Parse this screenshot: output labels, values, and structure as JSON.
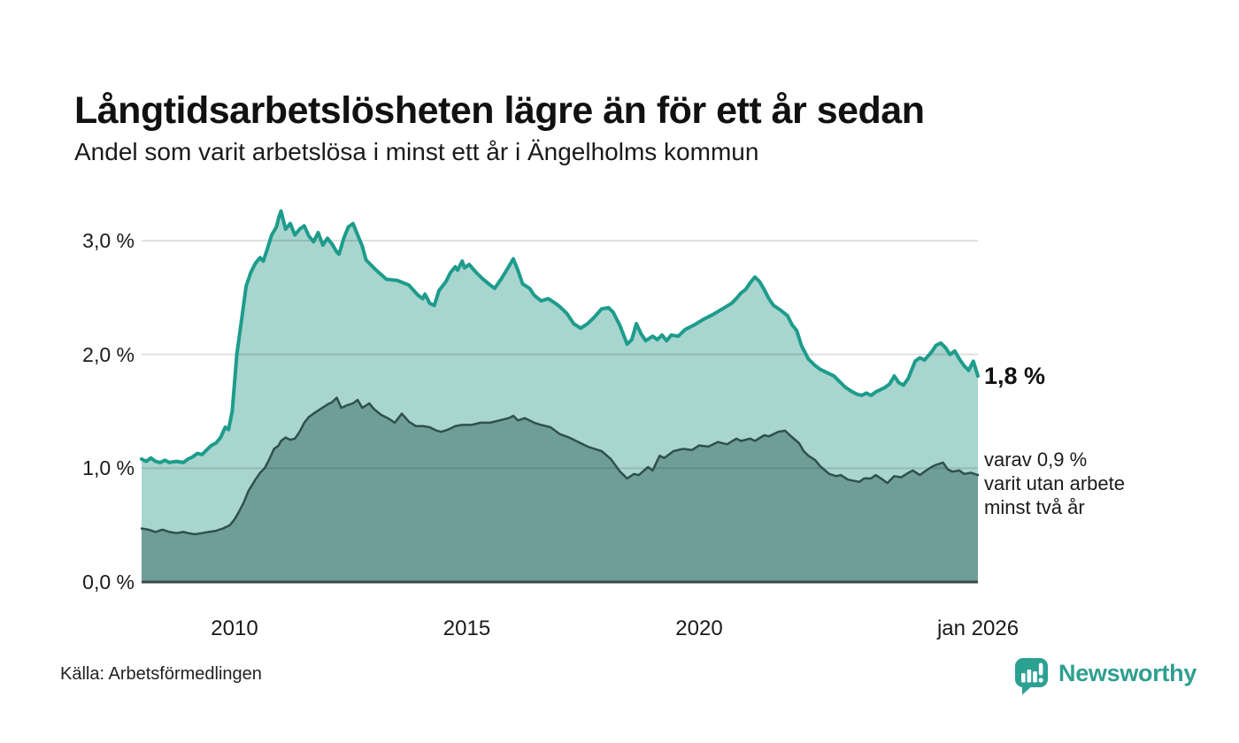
{
  "title": "Långtidsarbetslösheten lägre än för ett år sedan",
  "subtitle": "Andel som varit arbetslösa i minst ett år i Ängelholms kommun",
  "annotations": {
    "latest_total": "1,8 %",
    "sub_lines": [
      "varav 0,9 %",
      "varit utan arbete",
      "minst två år"
    ]
  },
  "source": "Källa: Arbetsförmedlingen",
  "brand": {
    "name": "Newsworthy"
  },
  "colors": {
    "accent_line": "#1d9c8c",
    "accent_fill": "#a8d5ce",
    "dark_line": "#30504b",
    "dark_fill": "#6f9e99",
    "gridline": "rgba(0,0,0,0.12)",
    "baseline": "#3e4a48",
    "brand_teal": "#2ba192",
    "text": "#1a1a1a"
  },
  "chart_data": {
    "type": "area",
    "title": "Långtidsarbetslösheten lägre än för ett år sedan",
    "subtitle": "Andel som varit arbetslösa i minst ett år i Ängelholms kommun",
    "x_range": [
      2008.0,
      2026.0
    ],
    "y_range": [
      0,
      3.0
    ],
    "grid": true,
    "legend": "none",
    "x_ticks": [
      {
        "label": "2010",
        "x": 2010
      },
      {
        "label": "2015",
        "x": 2015
      },
      {
        "label": "2020",
        "x": 2020
      },
      {
        "label": "jan 2026",
        "x": 2026
      }
    ],
    "y_ticks": [
      {
        "label": "0,0 %",
        "value": 0
      },
      {
        "label": "1,0 %",
        "value": 1
      },
      {
        "label": "2,0 %",
        "value": 2
      },
      {
        "label": "3,0 %",
        "value": 3
      }
    ],
    "series": [
      {
        "name": "Andel som varit arbetslösa minst ett år",
        "end_label": "1,8 %",
        "line_color": "#1d9c8c",
        "fill_color": "#a8d5ce",
        "line_width": 4,
        "points": [
          [
            2008.0,
            1.08
          ],
          [
            2008.1,
            1.06
          ],
          [
            2008.2,
            1.09
          ],
          [
            2008.3,
            1.06
          ],
          [
            2008.4,
            1.05
          ],
          [
            2008.5,
            1.07
          ],
          [
            2008.6,
            1.05
          ],
          [
            2008.75,
            1.06
          ],
          [
            2008.9,
            1.05
          ],
          [
            2009.0,
            1.08
          ],
          [
            2009.1,
            1.1
          ],
          [
            2009.2,
            1.13
          ],
          [
            2009.3,
            1.12
          ],
          [
            2009.4,
            1.16
          ],
          [
            2009.5,
            1.2
          ],
          [
            2009.6,
            1.22
          ],
          [
            2009.7,
            1.27
          ],
          [
            2009.8,
            1.36
          ],
          [
            2009.87,
            1.34
          ],
          [
            2009.95,
            1.5
          ],
          [
            2010.05,
            2.0
          ],
          [
            2010.15,
            2.3
          ],
          [
            2010.25,
            2.6
          ],
          [
            2010.35,
            2.72
          ],
          [
            2010.45,
            2.8
          ],
          [
            2010.55,
            2.85
          ],
          [
            2010.62,
            2.82
          ],
          [
            2010.7,
            2.92
          ],
          [
            2010.8,
            3.05
          ],
          [
            2010.9,
            3.12
          ],
          [
            2010.95,
            3.2
          ],
          [
            2011.0,
            3.26
          ],
          [
            2011.05,
            3.18
          ],
          [
            2011.1,
            3.1
          ],
          [
            2011.2,
            3.15
          ],
          [
            2011.3,
            3.05
          ],
          [
            2011.4,
            3.1
          ],
          [
            2011.5,
            3.13
          ],
          [
            2011.6,
            3.04
          ],
          [
            2011.7,
            2.99
          ],
          [
            2011.8,
            3.07
          ],
          [
            2011.9,
            2.96
          ],
          [
            2012.0,
            3.02
          ],
          [
            2012.1,
            2.97
          ],
          [
            2012.2,
            2.9
          ],
          [
            2012.25,
            2.88
          ],
          [
            2012.35,
            3.02
          ],
          [
            2012.45,
            3.12
          ],
          [
            2012.55,
            3.15
          ],
          [
            2012.65,
            3.05
          ],
          [
            2012.75,
            2.95
          ],
          [
            2012.83,
            2.83
          ],
          [
            2013.05,
            2.74
          ],
          [
            2013.27,
            2.66
          ],
          [
            2013.5,
            2.65
          ],
          [
            2013.75,
            2.61
          ],
          [
            2013.95,
            2.52
          ],
          [
            2014.05,
            2.49
          ],
          [
            2014.1,
            2.53
          ],
          [
            2014.2,
            2.45
          ],
          [
            2014.3,
            2.43
          ],
          [
            2014.4,
            2.56
          ],
          [
            2014.55,
            2.64
          ],
          [
            2014.65,
            2.72
          ],
          [
            2014.75,
            2.77
          ],
          [
            2014.8,
            2.74
          ],
          [
            2014.9,
            2.82
          ],
          [
            2014.95,
            2.76
          ],
          [
            2015.05,
            2.79
          ],
          [
            2015.2,
            2.72
          ],
          [
            2015.35,
            2.66
          ],
          [
            2015.5,
            2.61
          ],
          [
            2015.6,
            2.58
          ],
          [
            2015.75,
            2.67
          ],
          [
            2015.9,
            2.77
          ],
          [
            2016.0,
            2.84
          ],
          [
            2016.1,
            2.74
          ],
          [
            2016.2,
            2.62
          ],
          [
            2016.35,
            2.58
          ],
          [
            2016.45,
            2.52
          ],
          [
            2016.6,
            2.47
          ],
          [
            2016.75,
            2.49
          ],
          [
            2016.9,
            2.45
          ],
          [
            2017.0,
            2.42
          ],
          [
            2017.15,
            2.36
          ],
          [
            2017.3,
            2.27
          ],
          [
            2017.45,
            2.23
          ],
          [
            2017.6,
            2.27
          ],
          [
            2017.75,
            2.33
          ],
          [
            2017.9,
            2.4
          ],
          [
            2018.05,
            2.41
          ],
          [
            2018.15,
            2.37
          ],
          [
            2018.3,
            2.25
          ],
          [
            2018.45,
            2.09
          ],
          [
            2018.55,
            2.13
          ],
          [
            2018.65,
            2.27
          ],
          [
            2018.75,
            2.18
          ],
          [
            2018.85,
            2.12
          ],
          [
            2019.0,
            2.16
          ],
          [
            2019.1,
            2.13
          ],
          [
            2019.2,
            2.17
          ],
          [
            2019.3,
            2.12
          ],
          [
            2019.4,
            2.17
          ],
          [
            2019.55,
            2.16
          ],
          [
            2019.7,
            2.22
          ],
          [
            2019.9,
            2.26
          ],
          [
            2020.1,
            2.31
          ],
          [
            2020.3,
            2.35
          ],
          [
            2020.5,
            2.4
          ],
          [
            2020.7,
            2.45
          ],
          [
            2020.8,
            2.49
          ],
          [
            2020.9,
            2.54
          ],
          [
            2021.0,
            2.57
          ],
          [
            2021.1,
            2.63
          ],
          [
            2021.2,
            2.68
          ],
          [
            2021.3,
            2.64
          ],
          [
            2021.4,
            2.57
          ],
          [
            2021.5,
            2.49
          ],
          [
            2021.6,
            2.43
          ],
          [
            2021.75,
            2.39
          ],
          [
            2021.9,
            2.34
          ],
          [
            2022.0,
            2.26
          ],
          [
            2022.1,
            2.21
          ],
          [
            2022.2,
            2.08
          ],
          [
            2022.35,
            1.96
          ],
          [
            2022.5,
            1.9
          ],
          [
            2022.6,
            1.87
          ],
          [
            2022.75,
            1.84
          ],
          [
            2022.9,
            1.81
          ],
          [
            2023.0,
            1.77
          ],
          [
            2023.15,
            1.71
          ],
          [
            2023.3,
            1.67
          ],
          [
            2023.4,
            1.65
          ],
          [
            2023.5,
            1.64
          ],
          [
            2023.6,
            1.66
          ],
          [
            2023.7,
            1.64
          ],
          [
            2023.8,
            1.67
          ],
          [
            2023.9,
            1.69
          ],
          [
            2024.0,
            1.71
          ],
          [
            2024.1,
            1.74
          ],
          [
            2024.2,
            1.81
          ],
          [
            2024.3,
            1.75
          ],
          [
            2024.4,
            1.73
          ],
          [
            2024.5,
            1.79
          ],
          [
            2024.65,
            1.94
          ],
          [
            2024.75,
            1.97
          ],
          [
            2024.85,
            1.95
          ],
          [
            2025.0,
            2.02
          ],
          [
            2025.1,
            2.08
          ],
          [
            2025.2,
            2.1
          ],
          [
            2025.3,
            2.06
          ],
          [
            2025.4,
            2.0
          ],
          [
            2025.5,
            2.03
          ],
          [
            2025.6,
            1.96
          ],
          [
            2025.7,
            1.9
          ],
          [
            2025.8,
            1.86
          ],
          [
            2025.9,
            1.94
          ],
          [
            2026.0,
            1.81
          ]
        ]
      },
      {
        "name": "varav arbetslösa minst två år",
        "end_label": "0,9 %",
        "line_color": "#30504b",
        "fill_color": "#6f9e99",
        "line_width": 2.5,
        "points": [
          [
            2008.0,
            0.47
          ],
          [
            2008.15,
            0.46
          ],
          [
            2008.3,
            0.44
          ],
          [
            2008.45,
            0.46
          ],
          [
            2008.6,
            0.44
          ],
          [
            2008.75,
            0.43
          ],
          [
            2008.9,
            0.44
          ],
          [
            2009.0,
            0.43
          ],
          [
            2009.15,
            0.42
          ],
          [
            2009.3,
            0.43
          ],
          [
            2009.45,
            0.44
          ],
          [
            2009.6,
            0.45
          ],
          [
            2009.75,
            0.47
          ],
          [
            2009.9,
            0.5
          ],
          [
            2010.0,
            0.55
          ],
          [
            2010.1,
            0.62
          ],
          [
            2010.2,
            0.7
          ],
          [
            2010.3,
            0.8
          ],
          [
            2010.45,
            0.9
          ],
          [
            2010.55,
            0.96
          ],
          [
            2010.65,
            1.0
          ],
          [
            2010.75,
            1.08
          ],
          [
            2010.85,
            1.17
          ],
          [
            2010.95,
            1.2
          ],
          [
            2011.0,
            1.24
          ],
          [
            2011.1,
            1.27
          ],
          [
            2011.2,
            1.25
          ],
          [
            2011.3,
            1.26
          ],
          [
            2011.4,
            1.32
          ],
          [
            2011.5,
            1.4
          ],
          [
            2011.6,
            1.45
          ],
          [
            2011.7,
            1.48
          ],
          [
            2011.85,
            1.52
          ],
          [
            2012.0,
            1.56
          ],
          [
            2012.1,
            1.58
          ],
          [
            2012.2,
            1.62
          ],
          [
            2012.3,
            1.53
          ],
          [
            2012.4,
            1.55
          ],
          [
            2012.55,
            1.57
          ],
          [
            2012.65,
            1.6
          ],
          [
            2012.75,
            1.53
          ],
          [
            2012.9,
            1.57
          ],
          [
            2013.0,
            1.52
          ],
          [
            2013.15,
            1.47
          ],
          [
            2013.3,
            1.44
          ],
          [
            2013.45,
            1.4
          ],
          [
            2013.6,
            1.48
          ],
          [
            2013.75,
            1.41
          ],
          [
            2013.9,
            1.37
          ],
          [
            2014.05,
            1.37
          ],
          [
            2014.2,
            1.36
          ],
          [
            2014.35,
            1.33
          ],
          [
            2014.45,
            1.32
          ],
          [
            2014.6,
            1.34
          ],
          [
            2014.75,
            1.37
          ],
          [
            2014.9,
            1.38
          ],
          [
            2015.1,
            1.38
          ],
          [
            2015.3,
            1.4
          ],
          [
            2015.5,
            1.4
          ],
          [
            2015.7,
            1.42
          ],
          [
            2015.9,
            1.44
          ],
          [
            2016.0,
            1.46
          ],
          [
            2016.1,
            1.42
          ],
          [
            2016.25,
            1.44
          ],
          [
            2016.45,
            1.4
          ],
          [
            2016.6,
            1.38
          ],
          [
            2016.8,
            1.36
          ],
          [
            2017.0,
            1.3
          ],
          [
            2017.2,
            1.27
          ],
          [
            2017.4,
            1.23
          ],
          [
            2017.6,
            1.19
          ],
          [
            2017.75,
            1.17
          ],
          [
            2017.9,
            1.15
          ],
          [
            2018.1,
            1.08
          ],
          [
            2018.3,
            0.97
          ],
          [
            2018.45,
            0.91
          ],
          [
            2018.6,
            0.95
          ],
          [
            2018.7,
            0.94
          ],
          [
            2018.9,
            1.01
          ],
          [
            2019.0,
            0.98
          ],
          [
            2019.15,
            1.11
          ],
          [
            2019.25,
            1.09
          ],
          [
            2019.45,
            1.15
          ],
          [
            2019.65,
            1.17
          ],
          [
            2019.85,
            1.16
          ],
          [
            2020.0,
            1.2
          ],
          [
            2020.2,
            1.19
          ],
          [
            2020.4,
            1.23
          ],
          [
            2020.6,
            1.21
          ],
          [
            2020.8,
            1.26
          ],
          [
            2020.9,
            1.24
          ],
          [
            2021.1,
            1.26
          ],
          [
            2021.2,
            1.24
          ],
          [
            2021.4,
            1.29
          ],
          [
            2021.5,
            1.28
          ],
          [
            2021.7,
            1.32
          ],
          [
            2021.85,
            1.33
          ],
          [
            2021.95,
            1.29
          ],
          [
            2022.15,
            1.22
          ],
          [
            2022.25,
            1.15
          ],
          [
            2022.35,
            1.11
          ],
          [
            2022.5,
            1.07
          ],
          [
            2022.6,
            1.02
          ],
          [
            2022.8,
            0.95
          ],
          [
            2022.95,
            0.93
          ],
          [
            2023.05,
            0.94
          ],
          [
            2023.2,
            0.9
          ],
          [
            2023.45,
            0.88
          ],
          [
            2023.55,
            0.91
          ],
          [
            2023.7,
            0.91
          ],
          [
            2023.8,
            0.94
          ],
          [
            2023.95,
            0.9
          ],
          [
            2024.05,
            0.87
          ],
          [
            2024.2,
            0.93
          ],
          [
            2024.35,
            0.92
          ],
          [
            2024.5,
            0.96
          ],
          [
            2024.6,
            0.98
          ],
          [
            2024.75,
            0.94
          ],
          [
            2024.85,
            0.97
          ],
          [
            2025.0,
            1.01
          ],
          [
            2025.1,
            1.03
          ],
          [
            2025.25,
            1.05
          ],
          [
            2025.35,
            0.99
          ],
          [
            2025.45,
            0.97
          ],
          [
            2025.6,
            0.98
          ],
          [
            2025.7,
            0.95
          ],
          [
            2025.85,
            0.96
          ],
          [
            2026.0,
            0.94
          ]
        ]
      }
    ]
  }
}
